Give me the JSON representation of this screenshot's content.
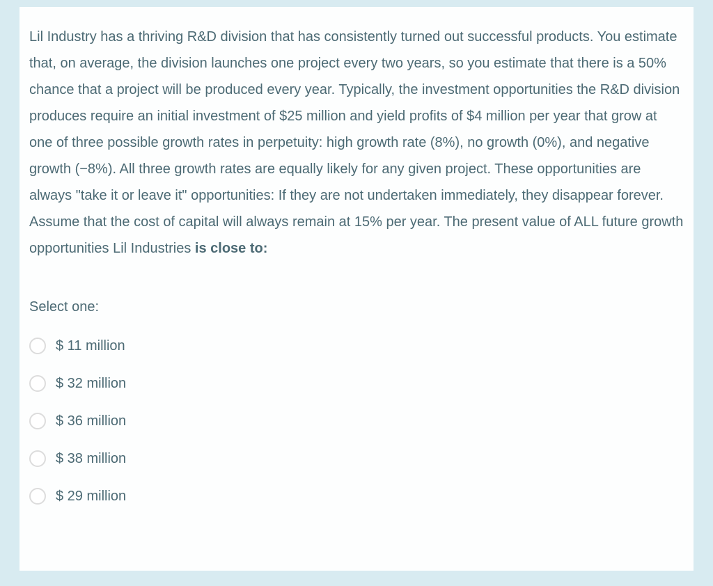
{
  "page": {
    "background_color": "#d8ebf1",
    "card_color": "#fdfefe",
    "text_color": "#4c6a74"
  },
  "question": {
    "text": "Lil Industry has a thriving R&D division that has consistently turned out successful products. You estimate that, on average, the division launches one project every two years, so you estimate that there is a 50% chance that a project will be produced every year. Typically, the investment opportunities the R&D division produces require an initial investment of $25 million and yield profits of $4 million per year that grow at one of three possible growth rates in perpetuity: high growth rate (8%), no growth (0%), and negative growth (−8%). All three growth rates are equally likely for any given project. These opportunities are always \"take it or leave it\" opportunities: If they are not undertaken immediately, they disappear forever. Assume that the cost of capital will always remain at 15% per year. The present value of ALL future growth opportunities Lil Industries ",
    "bold_text": "is close to:",
    "select_label": "Select one:",
    "options": [
      "$ 11 million",
      "$ 32 million",
      "$ 36 million",
      "$ 38 million",
      "$ 29 million"
    ]
  }
}
